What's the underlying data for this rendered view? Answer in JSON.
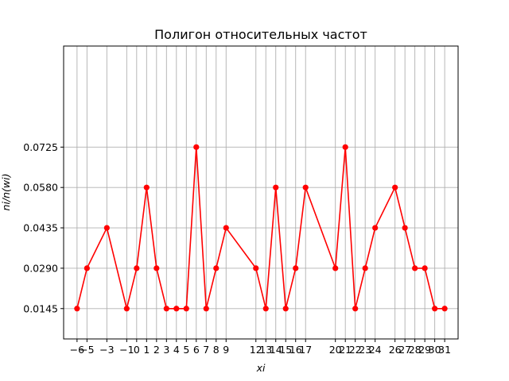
{
  "chart_data": {
    "type": "line",
    "title": "Полигон относительных частот",
    "xlabel": "xi",
    "ylabel": "ni/n(wi)",
    "xlim": [
      -7.35,
      32.35
    ],
    "ylim": [
      0.0036,
      0.1088
    ],
    "grid": true,
    "color": "#ff0000",
    "x_ticks": [
      -6,
      -5,
      -3,
      -1,
      0,
      1,
      2,
      3,
      4,
      5,
      6,
      7,
      8,
      9,
      12,
      13,
      14,
      15,
      16,
      17,
      20,
      21,
      22,
      23,
      24,
      26,
      27,
      28,
      29,
      30,
      31
    ],
    "x_tick_labels": [
      "−6",
      "−5",
      "−3",
      "−1",
      "0",
      "1",
      "2",
      "3",
      "4",
      "5",
      "6",
      "7",
      "8",
      "9",
      "12",
      "13",
      "14",
      "15",
      "16",
      "17",
      "20",
      "21",
      "22",
      "23",
      "24",
      "26",
      "27",
      "28",
      "29",
      "30",
      "31"
    ],
    "y_ticks": [
      0.0145,
      0.029,
      0.0435,
      0.058,
      0.0725
    ],
    "y_tick_labels": [
      "0.0145",
      "0.0290",
      "0.0435",
      "0.0580",
      "0.0725"
    ],
    "x": [
      -6,
      -5,
      -3,
      -1,
      0,
      1,
      2,
      3,
      4,
      5,
      6,
      7,
      8,
      9,
      12,
      13,
      14,
      15,
      16,
      17,
      20,
      21,
      22,
      23,
      24,
      26,
      27,
      28,
      29,
      30,
      31
    ],
    "y": [
      0.0145,
      0.029,
      0.0435,
      0.0145,
      0.029,
      0.058,
      0.029,
      0.0145,
      0.0145,
      0.0145,
      0.0725,
      0.0145,
      0.029,
      0.0435,
      0.029,
      0.0145,
      0.058,
      0.0145,
      0.029,
      0.058,
      0.029,
      0.0725,
      0.0145,
      0.029,
      0.0435,
      0.058,
      0.0435,
      0.029,
      0.029,
      0.0145,
      0.0145
    ]
  }
}
